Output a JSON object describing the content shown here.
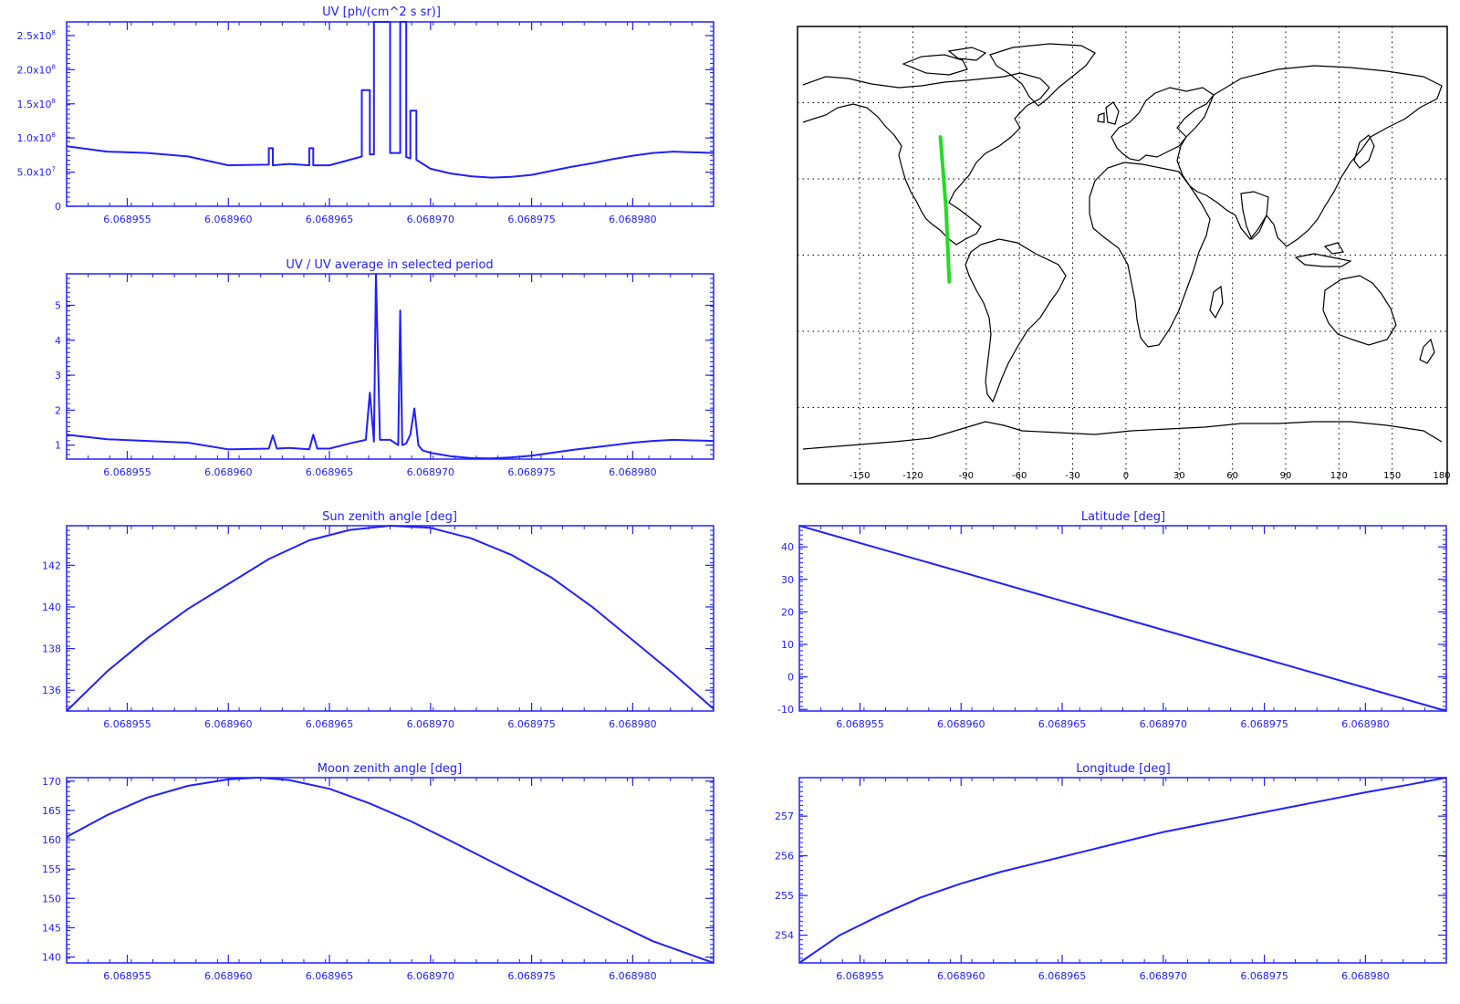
{
  "theme": {
    "plot_color": "#2020ff",
    "map_line_color": "#000000",
    "track_color": "#22dd22",
    "background": "#ffffff"
  },
  "chart_data": [
    {
      "id": "uv",
      "type": "line",
      "title": "UV [ph/(cm^2 s sr)]",
      "xlabel": "",
      "ylabel": "",
      "xlim": [
        6.068952,
        6.068984
      ],
      "ylim": [
        0,
        270000000.0
      ],
      "xticks": [
        {
          "v": 6.068955,
          "label": "6.068955"
        },
        {
          "v": 6.06896,
          "label": "6.068960"
        },
        {
          "v": 6.068965,
          "label": "6.068965"
        },
        {
          "v": 6.06897,
          "label": "6.068970"
        },
        {
          "v": 6.068975,
          "label": "6.068975"
        },
        {
          "v": 6.06898,
          "label": "6.068980"
        }
      ],
      "yticks": [
        {
          "v": 0,
          "label": "0",
          "exp": ""
        },
        {
          "v": 50000000.0,
          "label": "5.0x10",
          "exp": "7"
        },
        {
          "v": 100000000.0,
          "label": "1.0x10",
          "exp": "8"
        },
        {
          "v": 150000000.0,
          "label": "1.5x10",
          "exp": "8"
        },
        {
          "v": 200000000.0,
          "label": "2.0x10",
          "exp": "8"
        },
        {
          "v": 250000000.0,
          "label": "2.5x10",
          "exp": "8"
        }
      ],
      "series": [
        {
          "x": [
            6.068952,
            6.068954,
            6.068956,
            6.068958,
            6.06896,
            6.068962,
            6.068962,
            6.0689622,
            6.0689622,
            6.068963,
            6.068964,
            6.068964,
            6.0689642,
            6.0689642,
            6.068965,
            6.0689665,
            6.0689666,
            6.0689666,
            6.068967,
            6.068967,
            6.0689672,
            6.0689672,
            6.068968,
            6.068968,
            6.0689685,
            6.0689685,
            6.0689688,
            6.0689688,
            6.068969,
            6.068969,
            6.0689693,
            6.0689693,
            6.06897,
            6.068971,
            6.068972,
            6.068973,
            6.068974,
            6.068975,
            6.068976,
            6.068977,
            6.068978,
            6.068979,
            6.06898,
            6.068981,
            6.068982,
            6.068984
          ],
          "y": [
            88000000.0,
            80000000.0,
            78000000.0,
            73000000.0,
            60000000.0,
            61000000.0,
            85000000.0,
            85000000.0,
            60000000.0,
            62000000.0,
            60000000.0,
            85000000.0,
            85000000.0,
            60000000.0,
            60000000.0,
            72000000.0,
            73000000.0,
            170000000.0,
            170000000.0,
            76000000.0,
            76000000.0,
            270000000.0,
            270000000.0,
            78000000.0,
            78000000.0,
            270000000.0,
            270000000.0,
            72000000.0,
            70000000.0,
            140000000.0,
            140000000.0,
            68000000.0,
            55000000.0,
            48000000.0,
            44000000.0,
            42000000.0,
            43000000.0,
            46000000.0,
            52000000.0,
            58000000.0,
            63000000.0,
            69000000.0,
            74000000.0,
            78000000.0,
            80000000.0,
            78000000.0
          ]
        }
      ]
    },
    {
      "id": "ratio",
      "type": "line",
      "title": "UV / UV average in selected period",
      "xlabel": "",
      "ylabel": "",
      "xlim": [
        6.068952,
        6.068984
      ],
      "ylim": [
        0.6,
        5.9
      ],
      "xticks": [
        {
          "v": 6.068955,
          "label": "6.068955"
        },
        {
          "v": 6.06896,
          "label": "6.068960"
        },
        {
          "v": 6.068965,
          "label": "6.068965"
        },
        {
          "v": 6.06897,
          "label": "6.068970"
        },
        {
          "v": 6.068975,
          "label": "6.068975"
        },
        {
          "v": 6.06898,
          "label": "6.068980"
        }
      ],
      "yticks": [
        {
          "v": 1,
          "label": "1"
        },
        {
          "v": 2,
          "label": "2"
        },
        {
          "v": 3,
          "label": "3"
        },
        {
          "v": 4,
          "label": "4"
        },
        {
          "v": 5,
          "label": "5"
        }
      ],
      "series": [
        {
          "x": [
            6.068952,
            6.068954,
            6.068956,
            6.068958,
            6.06896,
            6.068962,
            6.0689622,
            6.0689624,
            6.068963,
            6.068964,
            6.0689642,
            6.0689644,
            6.068965,
            6.068966,
            6.0689668,
            6.068967,
            6.0689672,
            6.0689673,
            6.0689675,
            6.068968,
            6.0689684,
            6.0689685,
            6.0689686,
            6.0689688,
            6.068969,
            6.0689692,
            6.0689694,
            6.0689696,
            6.06897,
            6.068971,
            6.068972,
            6.068973,
            6.068974,
            6.068975,
            6.068976,
            6.068977,
            6.068978,
            6.068979,
            6.06898,
            6.068981,
            6.068982,
            6.068984
          ],
          "y": [
            1.3,
            1.17,
            1.12,
            1.07,
            0.88,
            0.9,
            1.28,
            0.9,
            0.92,
            0.88,
            1.3,
            0.9,
            0.9,
            1.05,
            1.15,
            2.5,
            1.1,
            5.9,
            1.15,
            1.15,
            1.0,
            4.85,
            1.0,
            1.05,
            1.3,
            2.05,
            1.0,
            0.85,
            0.78,
            0.68,
            0.63,
            0.62,
            0.65,
            0.7,
            0.78,
            0.86,
            0.93,
            1.0,
            1.07,
            1.12,
            1.15,
            1.12
          ]
        }
      ]
    },
    {
      "id": "sun",
      "type": "line",
      "title": "Sun zenith angle [deg]",
      "xlabel": "",
      "ylabel": "",
      "xlim": [
        6.068952,
        6.068984
      ],
      "ylim": [
        135.0,
        143.9
      ],
      "xticks": [
        {
          "v": 6.068955,
          "label": "6.068955"
        },
        {
          "v": 6.06896,
          "label": "6.068960"
        },
        {
          "v": 6.068965,
          "label": "6.068965"
        },
        {
          "v": 6.06897,
          "label": "6.068970"
        },
        {
          "v": 6.068975,
          "label": "6.068975"
        },
        {
          "v": 6.06898,
          "label": "6.068980"
        }
      ],
      "yticks": [
        {
          "v": 136,
          "label": "136"
        },
        {
          "v": 138,
          "label": "138"
        },
        {
          "v": 140,
          "label": "140"
        },
        {
          "v": 142,
          "label": "142"
        }
      ],
      "series": [
        {
          "x": [
            6.068952,
            6.068954,
            6.068956,
            6.068958,
            6.06896,
            6.068962,
            6.068964,
            6.068966,
            6.068968,
            6.06897,
            6.068972,
            6.068974,
            6.068976,
            6.068978,
            6.06898,
            6.068982,
            6.068984
          ],
          "y": [
            135.0,
            136.9,
            138.5,
            139.9,
            141.1,
            142.3,
            143.2,
            143.7,
            143.9,
            143.8,
            143.3,
            142.5,
            141.4,
            140.0,
            138.4,
            136.8,
            135.1
          ]
        }
      ]
    },
    {
      "id": "latitude",
      "type": "line",
      "title": "Latitude [deg]",
      "xlabel": "",
      "ylabel": "",
      "xlim": [
        6.068952,
        6.068984
      ],
      "ylim": [
        -10.5,
        46.5
      ],
      "xticks": [
        {
          "v": 6.068955,
          "label": "6.068955"
        },
        {
          "v": 6.06896,
          "label": "6.068960"
        },
        {
          "v": 6.068965,
          "label": "6.068965"
        },
        {
          "v": 6.06897,
          "label": "6.068970"
        },
        {
          "v": 6.068975,
          "label": "6.068975"
        },
        {
          "v": 6.06898,
          "label": "6.068980"
        }
      ],
      "yticks": [
        {
          "v": -10,
          "label": "-10"
        },
        {
          "v": 0,
          "label": "0"
        },
        {
          "v": 10,
          "label": "10"
        },
        {
          "v": 20,
          "label": "20"
        },
        {
          "v": 30,
          "label": "30"
        },
        {
          "v": 40,
          "label": "40"
        }
      ],
      "series": [
        {
          "x": [
            6.068952,
            6.06896,
            6.068968,
            6.068976,
            6.068984
          ],
          "y": [
            46.5,
            32.3,
            18.0,
            3.8,
            -10.5
          ]
        }
      ]
    },
    {
      "id": "moon",
      "type": "line",
      "title": "Moon zenith angle [deg]",
      "xlabel": "",
      "ylabel": "",
      "xlim": [
        6.068952,
        6.068984
      ],
      "ylim": [
        139.0,
        170.6
      ],
      "xticks": [
        {
          "v": 6.068955,
          "label": "6.068955"
        },
        {
          "v": 6.06896,
          "label": "6.068960"
        },
        {
          "v": 6.068965,
          "label": "6.068965"
        },
        {
          "v": 6.06897,
          "label": "6.068970"
        },
        {
          "v": 6.068975,
          "label": "6.068975"
        },
        {
          "v": 6.06898,
          "label": "6.068980"
        }
      ],
      "yticks": [
        {
          "v": 140,
          "label": "140"
        },
        {
          "v": 145,
          "label": "145"
        },
        {
          "v": 150,
          "label": "150"
        },
        {
          "v": 155,
          "label": "155"
        },
        {
          "v": 160,
          "label": "160"
        },
        {
          "v": 165,
          "label": "165"
        },
        {
          "v": 170,
          "label": "170"
        }
      ],
      "series": [
        {
          "x": [
            6.068952,
            6.068954,
            6.068956,
            6.068958,
            6.06896,
            6.0689615,
            6.068963,
            6.068965,
            6.068967,
            6.068969,
            6.068971,
            6.068973,
            6.068975,
            6.068977,
            6.068979,
            6.068981,
            6.068984
          ],
          "y": [
            160.5,
            164.2,
            167.2,
            169.2,
            170.3,
            170.6,
            170.2,
            168.7,
            166.2,
            163.2,
            159.8,
            156.3,
            152.8,
            149.4,
            146.0,
            142.7,
            139.0
          ]
        }
      ]
    },
    {
      "id": "longitude",
      "type": "line",
      "title": "Longitude [deg]",
      "xlabel": "",
      "ylabel": "",
      "xlim": [
        6.068952,
        6.068984
      ],
      "ylim": [
        253.3,
        257.97
      ],
      "xticks": [
        {
          "v": 6.068955,
          "label": "6.068955"
        },
        {
          "v": 6.06896,
          "label": "6.068960"
        },
        {
          "v": 6.068965,
          "label": "6.068965"
        },
        {
          "v": 6.06897,
          "label": "6.068970"
        },
        {
          "v": 6.068975,
          "label": "6.068975"
        },
        {
          "v": 6.06898,
          "label": "6.068980"
        }
      ],
      "yticks": [
        {
          "v": 254,
          "label": "254"
        },
        {
          "v": 255,
          "label": "255"
        },
        {
          "v": 256,
          "label": "256"
        },
        {
          "v": 257,
          "label": "257"
        }
      ],
      "series": [
        {
          "x": [
            6.068952,
            6.068954,
            6.068956,
            6.068958,
            6.06896,
            6.068962,
            6.068964,
            6.068966,
            6.068968,
            6.06897,
            6.068972,
            6.068974,
            6.068976,
            6.068978,
            6.06898,
            6.068982,
            6.068984
          ],
          "y": [
            253.3,
            254.0,
            254.5,
            254.95,
            255.3,
            255.6,
            255.85,
            256.1,
            256.35,
            256.6,
            256.8,
            257.0,
            257.2,
            257.4,
            257.6,
            257.78,
            257.97
          ]
        }
      ]
    }
  ],
  "map": {
    "lon_ticks": [
      "-150",
      "-120",
      "-90",
      "-60",
      "-30",
      "0",
      "30",
      "60",
      "90",
      "120",
      "150",
      "180"
    ],
    "track": [
      {
        "lon": -104.5,
        "lat": 46.5
      },
      {
        "lon": -101.3,
        "lat": 18.0
      },
      {
        "lon": -99.5,
        "lat": -10.5
      }
    ]
  }
}
